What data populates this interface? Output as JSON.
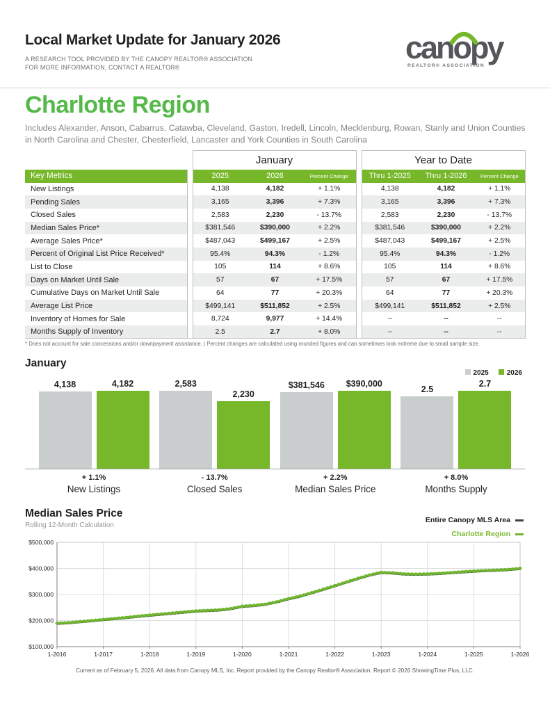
{
  "header": {
    "title": "Local Market Update for January 2026",
    "subtitle_line1": "A RESEARCH TOOL PROVIDED BY THE CANOPY REALTOR® ASSOCIATION",
    "subtitle_line2": "FOR MORE INFORMATION, CONTACT A REALTOR®",
    "logo_text": "canopy",
    "logo_tagline": "REALTOR® ASSOCIATION"
  },
  "region": {
    "name": "Charlotte Region",
    "description": "Includes Alexander, Anson, Cabarrus, Catawba, Cleveland, Gaston, Iredell, Lincoln, Mecklenburg, Rowan, Stanly and Union Counties in North Carolina and Chester, Chesterfield, Lancaster and York Counties in South Carolina"
  },
  "table": {
    "group_headers": [
      "January",
      "Year to Date"
    ],
    "columns": [
      "Key Metrics",
      "2025",
      "2026",
      "Percent Change",
      "Thru 1-2025",
      "Thru 1-2026",
      "Percent Change"
    ],
    "rows": [
      [
        "New Listings",
        "4,138",
        "4,182",
        "+ 1.1%",
        "4,138",
        "4,182",
        "+ 1.1%"
      ],
      [
        "Pending Sales",
        "3,165",
        "3,396",
        "+ 7.3%",
        "3,165",
        "3,396",
        "+ 7.3%"
      ],
      [
        "Closed Sales",
        "2,583",
        "2,230",
        "- 13.7%",
        "2,583",
        "2,230",
        "- 13.7%"
      ],
      [
        "Median Sales Price*",
        "$381,546",
        "$390,000",
        "+ 2.2%",
        "$381,546",
        "$390,000",
        "+ 2.2%"
      ],
      [
        "Average Sales Price*",
        "$487,043",
        "$499,167",
        "+ 2.5%",
        "$487,043",
        "$499,167",
        "+ 2.5%"
      ],
      [
        "Percent of Original List Price Received*",
        "95.4%",
        "94.3%",
        "- 1.2%",
        "95.4%",
        "94.3%",
        "- 1.2%"
      ],
      [
        "List to Close",
        "105",
        "114",
        "+ 8.6%",
        "105",
        "114",
        "+ 8.6%"
      ],
      [
        "Days on Market Until Sale",
        "57",
        "67",
        "+ 17.5%",
        "57",
        "67",
        "+ 17.5%"
      ],
      [
        "Cumulative Days on Market Until Sale",
        "64",
        "77",
        "+ 20.3%",
        "64",
        "77",
        "+ 20.3%"
      ],
      [
        "Average List Price",
        "$499,141",
        "$511,852",
        "+ 2.5%",
        "$499,141",
        "$511,852",
        "+ 2.5%"
      ],
      [
        "Inventory of Homes for Sale",
        "8,724",
        "9,977",
        "+ 14.4%",
        "--",
        "--",
        "--"
      ],
      [
        "Months Supply of Inventory",
        "2.5",
        "2.7",
        "+ 8.0%",
        "--",
        "--",
        "--"
      ]
    ],
    "footnote": "* Does not account for sale concessions and/or downpayment assistance.  |  Percent changes are calculated using rounded figures and can sometimes look extreme due to small sample size."
  },
  "colors": {
    "brand_green": "#76B82A",
    "heading_green": "#54B948",
    "bar_gray": "#C9CDCD",
    "line_green": "#6FB52E",
    "line_black": "#414042"
  },
  "chart_data": [
    {
      "type": "bar",
      "title": "January",
      "categories": [
        "New Listings",
        "Closed Sales",
        "Median Sales Price",
        "Months Supply"
      ],
      "series": [
        {
          "name": "2025",
          "color": "#C9CDCD",
          "values": [
            4138,
            2583,
            381546,
            2.5
          ]
        },
        {
          "name": "2026",
          "color": "#76B82A",
          "values": [
            4182,
            2230,
            390000,
            2.7
          ]
        }
      ],
      "value_labels": [
        [
          "4,138",
          "4,182"
        ],
        [
          "2,583",
          "2,230"
        ],
        [
          "$381,546",
          "$390,000"
        ],
        [
          "2.5",
          "2.7"
        ]
      ],
      "pct_change": [
        "+ 1.1%",
        "- 13.7%",
        "+ 2.2%",
        "+ 8.0%"
      ],
      "legend_position": "top-right",
      "scaling": "each category pair scaled independently to a common max bar height"
    },
    {
      "type": "line",
      "title": "Median Sales Price",
      "subtitle": "Rolling 12-Month Calculation",
      "x_labels": [
        "1-2016",
        "1-2017",
        "1-2018",
        "1-2019",
        "1-2020",
        "1-2021",
        "1-2022",
        "1-2023",
        "1-2024",
        "1-2025",
        "1-2026"
      ],
      "ylim": [
        100000,
        500000
      ],
      "y_ticks": [
        "$100,000",
        "$200,000",
        "$300,000",
        "$400,000",
        "$500,000"
      ],
      "x_interval": "quarterly estimates, 1-2016 through 1-2026",
      "series": [
        {
          "name": "Entire Canopy MLS Area",
          "color": "#414042",
          "values": [
            187000,
            189000,
            193000,
            197000,
            201000,
            205000,
            209000,
            214000,
            218000,
            222000,
            226000,
            230000,
            234000,
            236000,
            238000,
            243000,
            252000,
            255000,
            260000,
            269000,
            281000,
            291000,
            304000,
            317000,
            331000,
            345000,
            359000,
            372000,
            382000,
            380000,
            376000,
            375000,
            376000,
            378000,
            381000,
            384000,
            387000,
            389000,
            391000,
            393000,
            397000
          ]
        },
        {
          "name": "Charlotte Region",
          "color": "#6FB52E",
          "values": [
            190000,
            192000,
            196000,
            200000,
            204000,
            208000,
            212000,
            217000,
            221000,
            225000,
            229000,
            233000,
            237000,
            239000,
            241000,
            246000,
            255000,
            258000,
            263000,
            272000,
            284000,
            294000,
            307000,
            320000,
            334000,
            348000,
            362000,
            375000,
            385000,
            383000,
            379000,
            378000,
            379000,
            381000,
            384000,
            387000,
            390000,
            392000,
            394000,
            396000,
            400000
          ]
        }
      ],
      "legend_position": "top-right"
    }
  ],
  "footer": "Current as of February 5, 2026. All data from Canopy MLS, Inc. Report provided by the Canopy Realtor® Association. Report © 2026 ShowingTime Plus, LLC."
}
